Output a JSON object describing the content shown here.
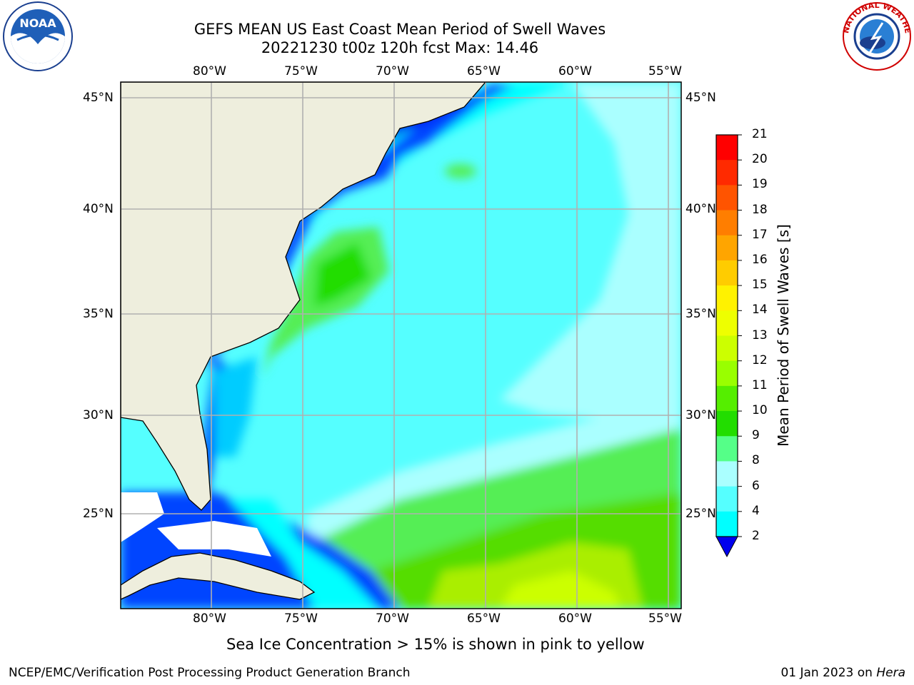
{
  "header": {
    "title_line1": "GEFS MEAN US East Coast Mean Period of Swell Waves",
    "title_line2": "20221230 t00z 120h fcst   Max: 14.46"
  },
  "logos": {
    "left": {
      "icon": "noaa-logo-icon",
      "text": "NOAA"
    },
    "right": {
      "icon": "nws-logo-icon",
      "text": "NATIONAL WEATHER SERVICE"
    }
  },
  "map": {
    "lon_labels": [
      "80°W",
      "75°W",
      "70°W",
      "65°W",
      "60°W",
      "55°W"
    ],
    "lat_labels": [
      "45°N",
      "40°N",
      "35°N",
      "30°N",
      "25°N"
    ],
    "colors": {
      "land": "#eeeedd",
      "grid": "#b0b0b0",
      "coast": "#000000"
    }
  },
  "colorbar": {
    "label": "Mean Period of Swell Waves [s]",
    "ticks": [
      "21",
      "20",
      "19",
      "18",
      "17",
      "16",
      "15",
      "14",
      "13",
      "12",
      "11",
      "10",
      "9",
      "8",
      "6",
      "4",
      "2"
    ],
    "colors": [
      "#ff0000",
      "#ff2a00",
      "#ff5400",
      "#ff7e00",
      "#ffa500",
      "#ffcc00",
      "#fff200",
      "#eeff00",
      "#ccff00",
      "#99ff00",
      "#55ee00",
      "#22dd00",
      "#55ff88",
      "#aaffff",
      "#55ffff",
      "#00ffff",
      "#0055ff",
      "#0000ee"
    ]
  },
  "notes": {
    "sea_ice": "Sea Ice Concentration > 15% is shown in pink to yellow"
  },
  "footer": {
    "left": "NCEP/EMC/Verification Post Processing Product Generation Branch",
    "date": "01 Jan 2023 on ",
    "host": "Hera"
  }
}
